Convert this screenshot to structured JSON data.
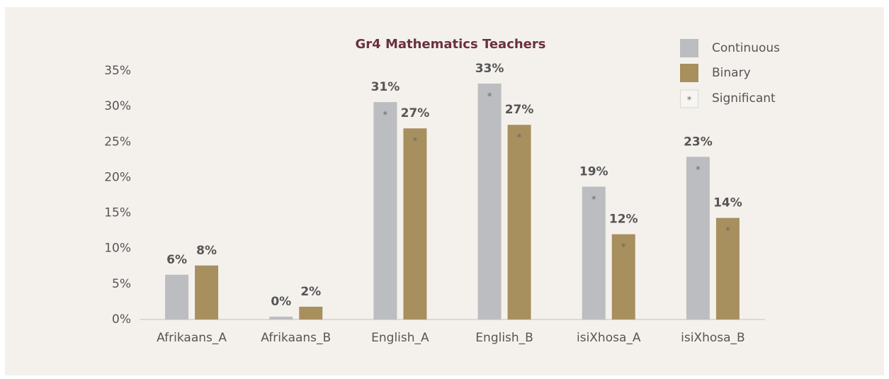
{
  "chart_data": {
    "type": "bar",
    "title": "Gr4 Mathematics Teachers",
    "categories": [
      "Afrikaans_A",
      "Afrikaans_B",
      "English_A",
      "English_B",
      "isiXhosa_A",
      "isiXhosa_B"
    ],
    "series": [
      {
        "name": "Continuous",
        "color": "#bcbdc0",
        "values": [
          6.3,
          0.4,
          30.6,
          33.2,
          18.7,
          22.9
        ],
        "value_labels": [
          "6%",
          "0%",
          "31%",
          "33%",
          "19%",
          "23%"
        ],
        "significant": [
          false,
          false,
          true,
          true,
          true,
          true
        ]
      },
      {
        "name": "Binary",
        "color": "#a88f5e",
        "values": [
          7.6,
          1.8,
          26.9,
          27.4,
          12.0,
          14.3
        ],
        "value_labels": [
          "8%",
          "2%",
          "27%",
          "27%",
          "12%",
          "14%"
        ],
        "significant": [
          false,
          false,
          true,
          true,
          true,
          true
        ]
      }
    ],
    "significance_marker": "*",
    "significance_label": "Significant",
    "ylim": [
      0,
      35
    ],
    "yticks": [
      {
        "value": 0,
        "label": "0%"
      },
      {
        "value": 5,
        "label": "5%"
      },
      {
        "value": 10,
        "label": "10%"
      },
      {
        "value": 15,
        "label": "15%"
      },
      {
        "value": 20,
        "label": "20%"
      },
      {
        "value": 25,
        "label": "25%"
      },
      {
        "value": 30,
        "label": "30%"
      },
      {
        "value": 35,
        "label": "35%"
      }
    ],
    "legend": "top-right"
  }
}
